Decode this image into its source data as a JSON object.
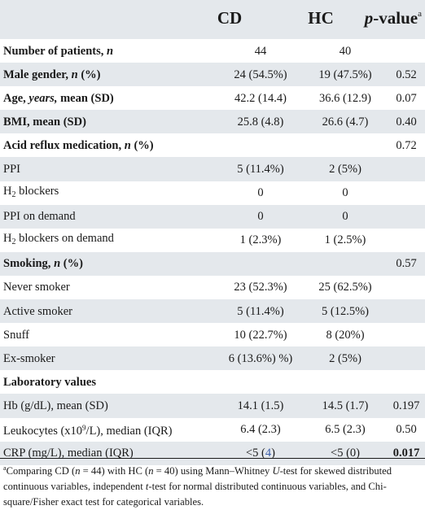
{
  "header": {
    "col_cd": "CD",
    "col_hc": "HC",
    "col_p_prefix": "p",
    "col_p_suffix": "-value",
    "col_p_mark": "a"
  },
  "rows": [
    {
      "label": "Number of patients,",
      "label_italic": "n",
      "cd": "44",
      "hc": "40",
      "p": ""
    },
    {
      "label": "Male gender,",
      "label_italic": "n",
      "label_after": "(%)",
      "cd": "24 (54.5%)",
      "hc": "19 (47.5%)",
      "p": "0.52"
    },
    {
      "label": "Age,",
      "label_italic": "years,",
      "label_after": "mean (SD)",
      "cd": "42.2 (14.4)",
      "hc": "36.6 (12.9)",
      "p": "0.07"
    },
    {
      "label": "BMI, mean (SD)",
      "cd": "25.8 (4.8)",
      "hc": "26.6 (4.7)",
      "p": "0.40"
    },
    {
      "label": "Acid reflux medication,",
      "label_italic": "n",
      "label_after": "(%)",
      "cd": "",
      "hc": "",
      "p": "0.72"
    },
    {
      "label": "PPI",
      "cd": "5 (11.4%)",
      "hc": "2 (5%)",
      "p": ""
    },
    {
      "label_pre": "H",
      "label_sub": "2",
      "label": "blockers",
      "cd": "0",
      "hc": "0",
      "p": ""
    },
    {
      "label": "PPI on demand",
      "cd": "0",
      "hc": "0",
      "p": ""
    },
    {
      "label_pre": "H",
      "label_sub": "2",
      "label": "blockers on demand",
      "cd": "1 (2.3%)",
      "hc": "1 (2.5%)",
      "p": ""
    },
    {
      "label": "Smoking,",
      "label_italic": "n",
      "label_after": "(%)",
      "cd": "",
      "hc": "",
      "p": "0.57"
    },
    {
      "label": "Never smoker",
      "cd": "23 (52.3%)",
      "hc": "25 (62.5%)",
      "p": ""
    },
    {
      "label": "Active smoker",
      "cd": "5 (11.4%)",
      "hc": "5 (12.5%)",
      "p": ""
    },
    {
      "label": "Snuff",
      "cd": "10 (22.7%)",
      "hc": "8 (20%)",
      "p": ""
    },
    {
      "label": "Ex-smoker",
      "cd": "6 (13.6%) %)",
      "hc": "2 (5%)",
      "p": ""
    },
    {
      "label": "Laboratory values",
      "cd": "",
      "hc": "",
      "p": ""
    },
    {
      "label": "Hb (g/dL), mean (SD)",
      "cd": "14.1 (1.5)",
      "hc": "14.5 (1.7)",
      "p": "0.197"
    },
    {
      "label_pre": "Leukocytes (x10",
      "label_sup": "9",
      "label": "/L), median (IQR)",
      "cd": "6.4 (2.3)",
      "hc": "6.5 (2.3)",
      "p": "0.50"
    },
    {
      "label": "CRP (mg/L), median (IQR)",
      "cd_pre": "<5 (",
      "cd_link": "4",
      "cd_post": ")",
      "hc": "<5 (0)",
      "p": "0.017"
    }
  ],
  "footnote": {
    "mark": "a",
    "t1": "Comparing CD (",
    "n1": "n",
    "t2": " = 44) with HC (",
    "n2": "n",
    "t3": " = 40) using Mann–Whitney ",
    "u": "U",
    "t4": "-test for skewed distributed continuous variables, independent ",
    "t": "t",
    "t5": "-test for normal distributed continuous variables, and Chi-square/Fisher exact test for categorical variables."
  }
}
